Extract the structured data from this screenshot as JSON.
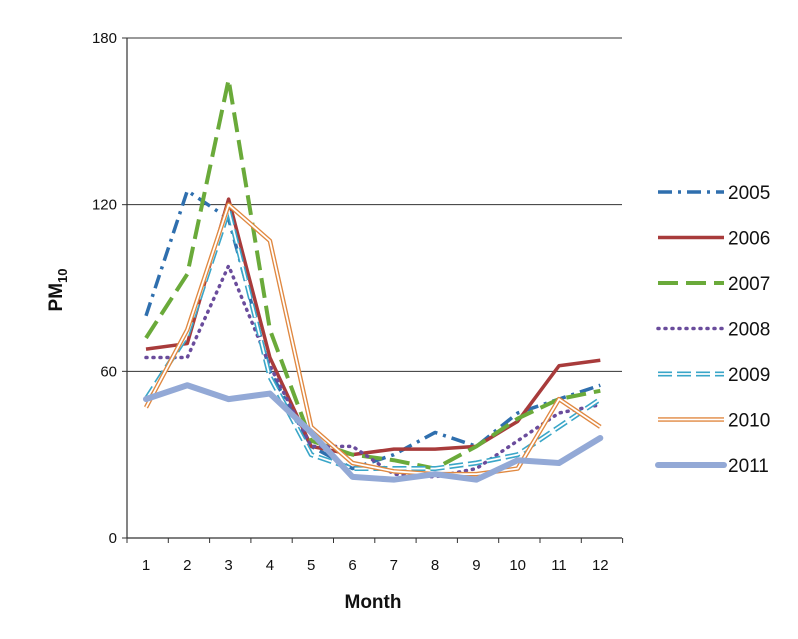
{
  "chart_data": {
    "type": "line",
    "title": "",
    "xlabel": "Month",
    "ylabel": "PM",
    "ylabel_sub": "10",
    "x": [
      1,
      2,
      3,
      4,
      5,
      6,
      7,
      8,
      9,
      10,
      11,
      12
    ],
    "x_tick_labels": [
      "1",
      "2",
      "3",
      "4",
      "5",
      "6",
      "7",
      "8",
      "9",
      "10",
      "11",
      "12"
    ],
    "ylim": [
      0,
      180
    ],
    "y_ticks": [
      0,
      60,
      120,
      180
    ],
    "y_tick_labels": [
      "0",
      "60",
      "120",
      "180"
    ],
    "grid": "horizontal",
    "legend_position": "right",
    "series": [
      {
        "name": "2005",
        "color": "#2f6fae",
        "style": "dash-dot",
        "values": [
          80,
          125,
          115,
          60,
          33,
          25,
          30,
          38,
          33,
          45,
          50,
          55
        ]
      },
      {
        "name": "2006",
        "color": "#a83b3b",
        "style": "solid",
        "values": [
          68,
          70,
          122,
          65,
          33,
          30,
          32,
          32,
          33,
          42,
          62,
          64
        ]
      },
      {
        "name": "2007",
        "color": "#6aaa3a",
        "style": "long-dash",
        "values": [
          72,
          95,
          165,
          75,
          35,
          30,
          28,
          25,
          33,
          43,
          50,
          53
        ]
      },
      {
        "name": "2008",
        "color": "#6a4c9c",
        "style": "dotted",
        "values": [
          65,
          65,
          98,
          62,
          33,
          33,
          23,
          22,
          25,
          35,
          45,
          48
        ]
      },
      {
        "name": "2009",
        "color": "#3aa6c8",
        "style": "double-dash",
        "values": [
          50,
          73,
          118,
          58,
          30,
          25,
          25,
          25,
          27,
          30,
          40,
          50
        ]
      },
      {
        "name": "2010",
        "color": "#e08840",
        "style": "double-line",
        "values": [
          47,
          75,
          120,
          107,
          40,
          27,
          24,
          23,
          23,
          25,
          50,
          40
        ]
      },
      {
        "name": "2011",
        "color": "#93a9d6",
        "style": "thick",
        "values": [
          50,
          55,
          50,
          52,
          38,
          22,
          21,
          23,
          21,
          28,
          27,
          36
        ]
      }
    ]
  }
}
